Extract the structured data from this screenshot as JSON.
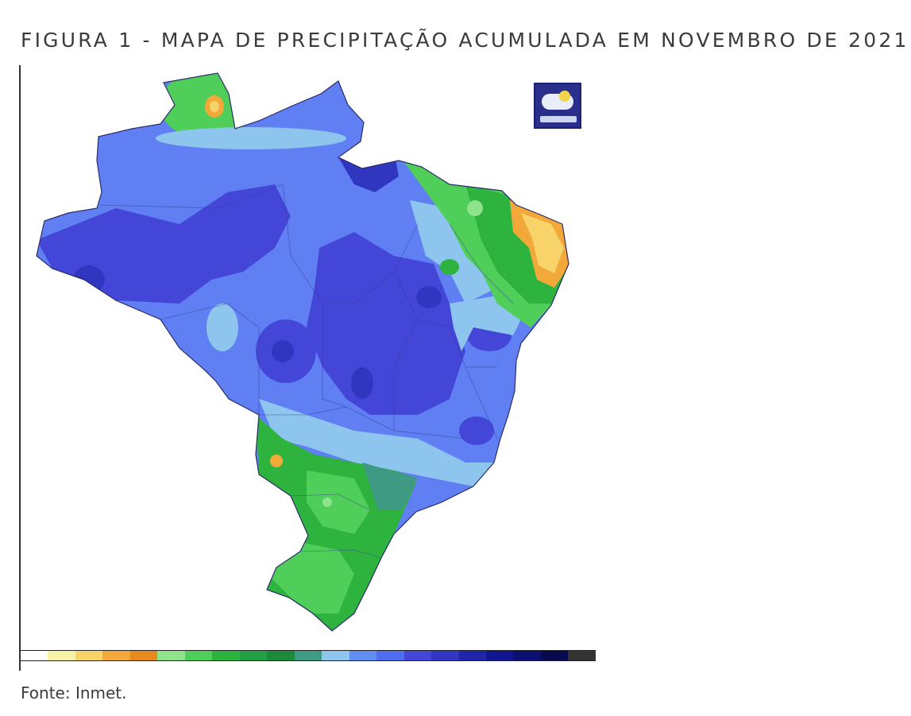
{
  "figure": {
    "title": "FIGURA 1 - MAPA DE PRECIPITAÇÃO ACUMULADA EM NOVEMBRO DE 2021",
    "source": "Fonte: Inmet."
  },
  "map": {
    "region": "Brasil",
    "logo_icon": "inmet-weather-logo-icon",
    "legend_colors": [
      "#ffffff",
      "#f6f3a8",
      "#f7d36a",
      "#f3a83a",
      "#e58a1e",
      "#8fe38a",
      "#4fcf5a",
      "#2fb33f",
      "#23a046",
      "#1b8a3a",
      "#3f9a84",
      "#8ec5ee",
      "#5f8ff0",
      "#4f6df0",
      "#4446d8",
      "#3036c0",
      "#1f24a8",
      "#12168e",
      "#0a0f70",
      "#07094f",
      "#333333"
    ],
    "legend_tick_labels": [
      "",
      "",
      "",
      "",
      "",
      "",
      "",
      "",
      "",
      "",
      "",
      "",
      "",
      "",
      "",
      "",
      "",
      "",
      "",
      "",
      ""
    ]
  }
}
